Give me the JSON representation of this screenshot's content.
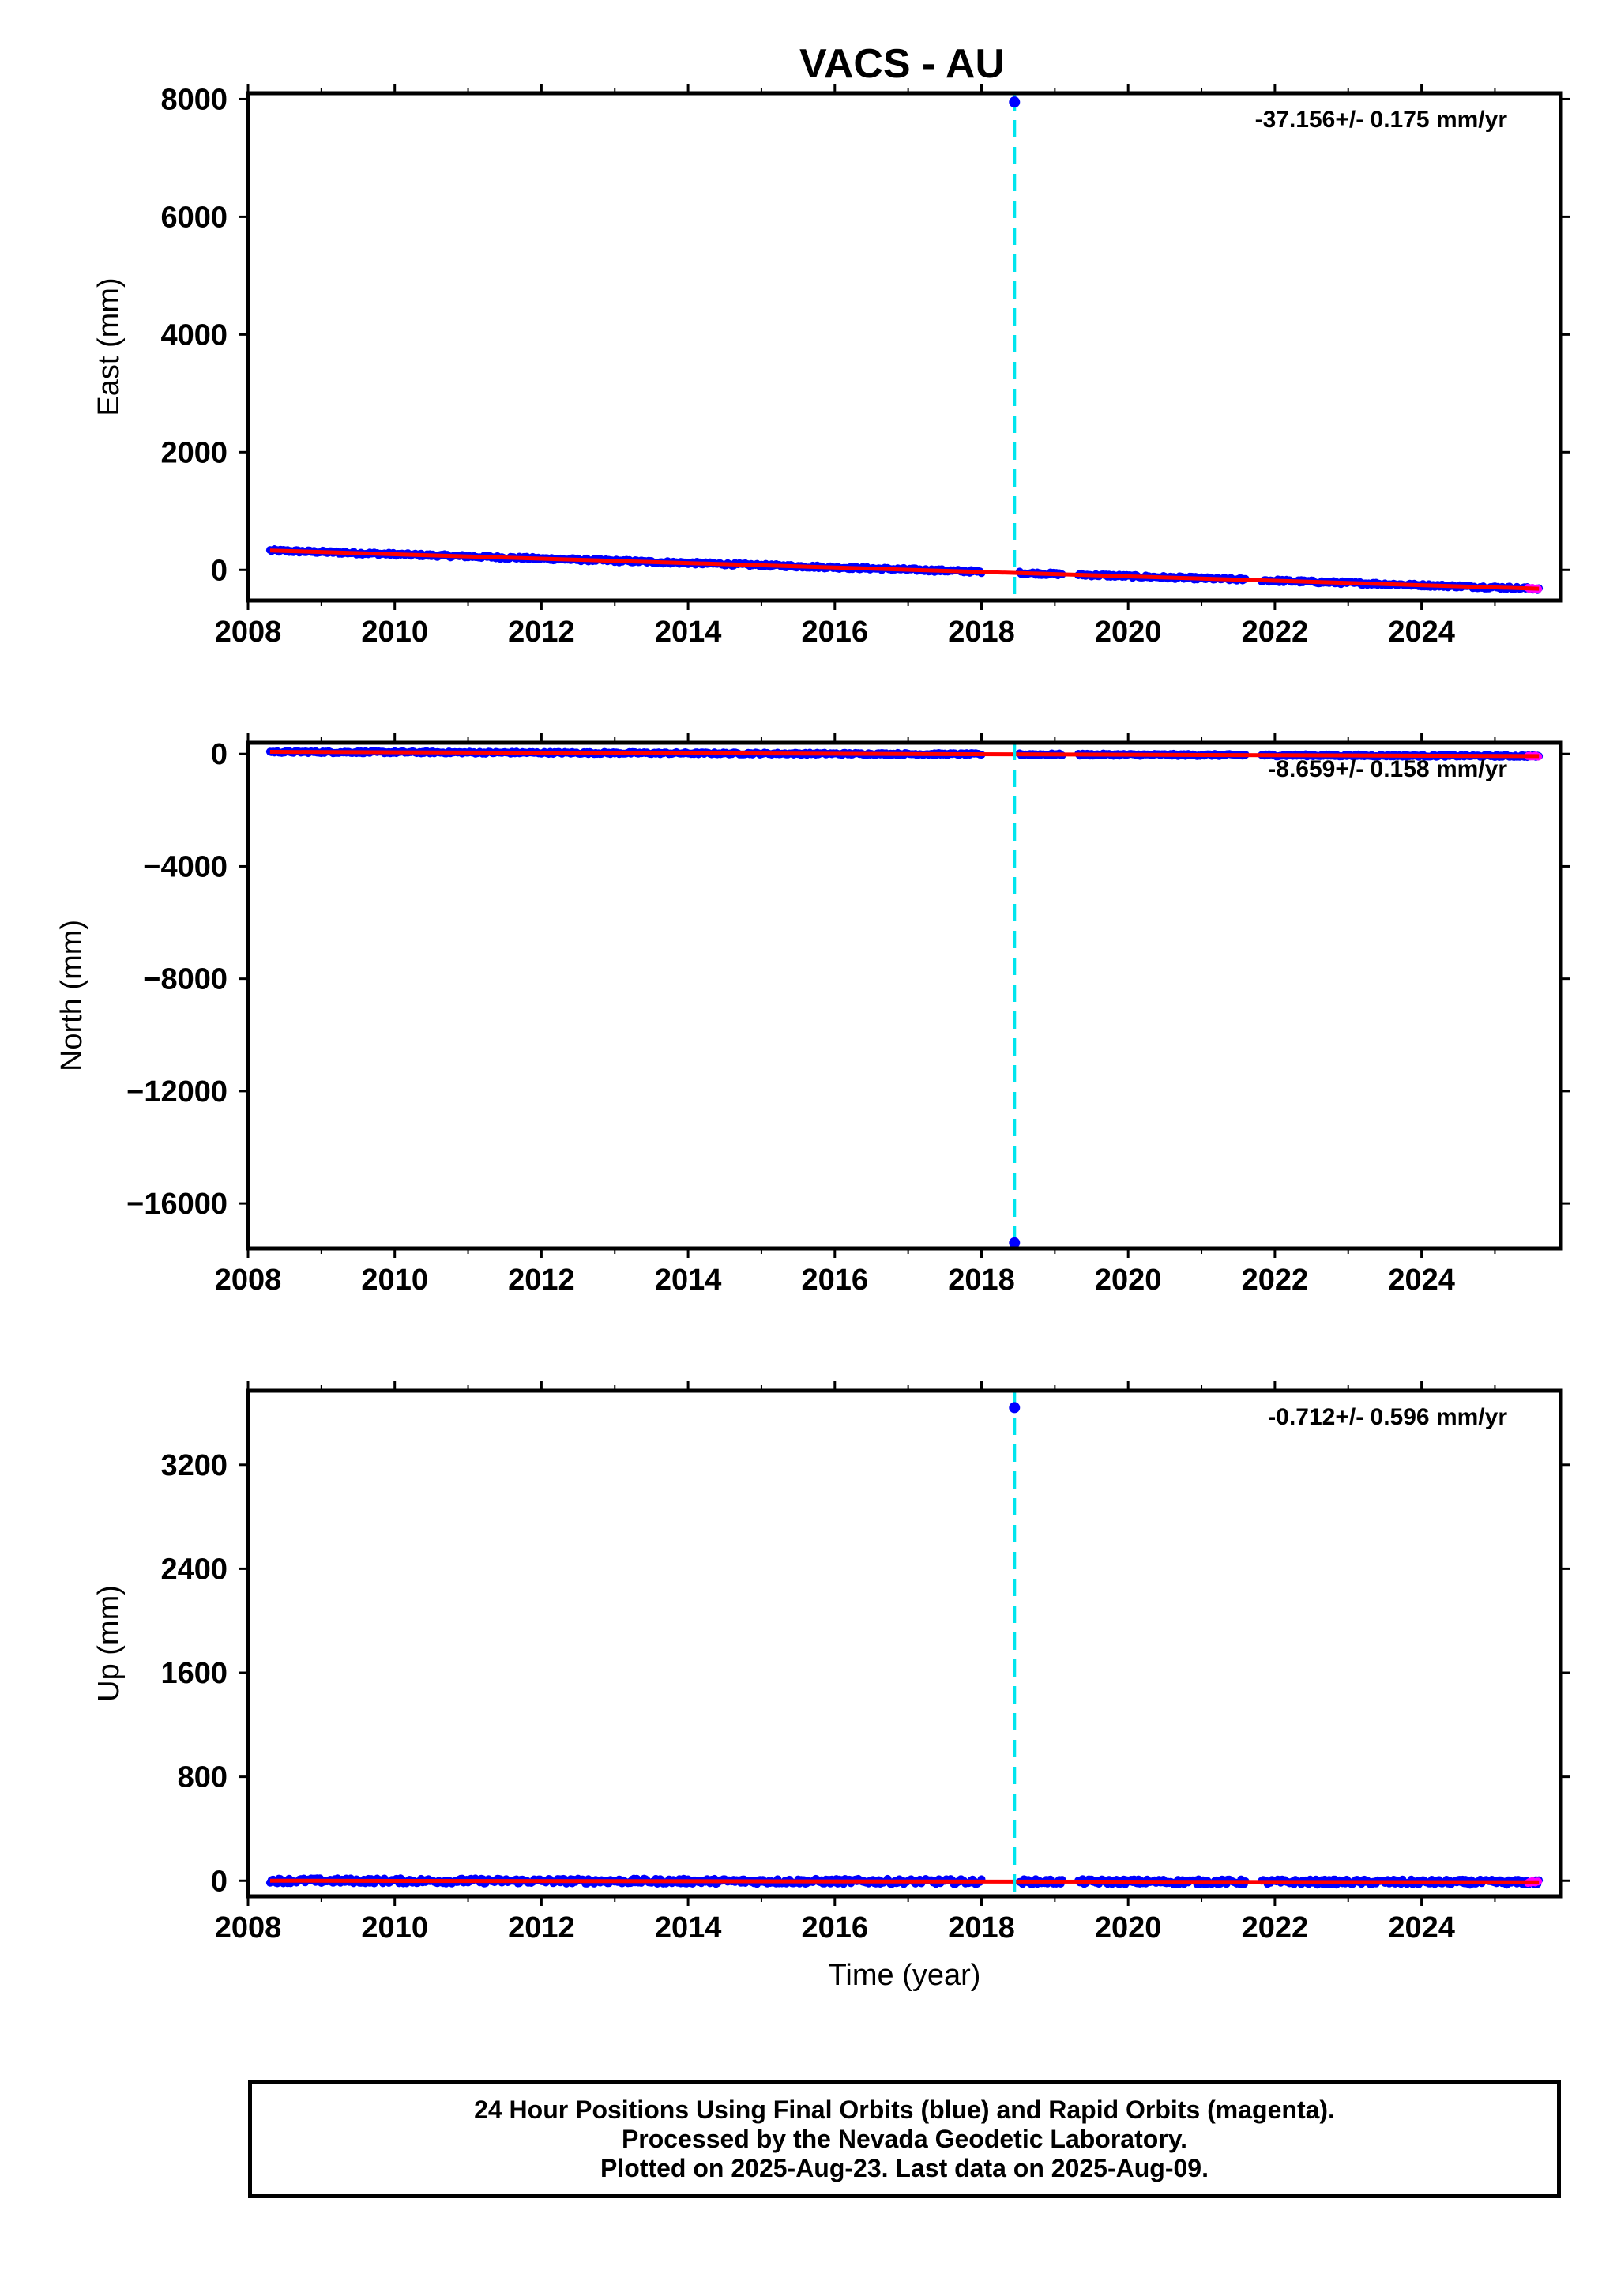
{
  "title": "VACS - AU",
  "colors": {
    "final_orbits": "#0000ff",
    "rapid_orbits": "#ff00ff",
    "model_fit": "#ff0000",
    "event_line": "#00e5ee",
    "frame": "#000000"
  },
  "event_marker": {
    "year": 2018.45,
    "style": "dashed vertical line"
  },
  "chart_data": [
    {
      "type": "scatter",
      "ylabel": "East (mm)",
      "xlabel": "",
      "xlim": [
        2008,
        2025.9
      ],
      "ylim": [
        -520,
        8100
      ],
      "x_ticks": [
        "2008",
        "2010",
        "2012",
        "2014",
        "2016",
        "2018",
        "2020",
        "2022",
        "2024"
      ],
      "y_ticks": [
        "0",
        "2000",
        "4000",
        "6000",
        "8000"
      ],
      "y_tick_values": [
        0,
        2000,
        4000,
        6000,
        8000
      ],
      "rate_label": "-37.156+/- 0.175 mm/yr",
      "series": [
        {
          "name": "Final Orbits",
          "x": [
            2008.3,
            2018.45,
            2025.6
          ],
          "y": [
            330,
            -48,
            -320
          ]
        },
        {
          "name": "Rapid Orbits",
          "x": [
            2025.45,
            2025.6
          ],
          "y": [
            -315,
            -320
          ]
        }
      ],
      "outliers": [
        {
          "x": 2018.45,
          "y": 7950
        }
      ],
      "gaps": [
        [
          2018.0,
          2018.5
        ],
        [
          2019.1,
          2019.3
        ],
        [
          2021.6,
          2021.8
        ]
      ],
      "trend": {
        "x": [
          2008.3,
          2025.6
        ],
        "y": [
          330,
          -320
        ]
      },
      "noise_mm": 25
    },
    {
      "type": "scatter",
      "ylabel": "North (mm)",
      "xlabel": "",
      "xlim": [
        2008,
        2025.9
      ],
      "ylim": [
        -17600,
        400
      ],
      "x_ticks": [
        "2008",
        "2010",
        "2012",
        "2014",
        "2016",
        "2018",
        "2020",
        "2022",
        "2024"
      ],
      "y_ticks": [
        "0",
        "−4000",
        "−8000",
        "−12000",
        "−16000"
      ],
      "y_tick_values": [
        0,
        -4000,
        -8000,
        -12000,
        -16000
      ],
      "rate_label": "-8.659+/- 0.158 mm/yr",
      "series": [
        {
          "name": "Final Orbits",
          "x": [
            2008.3,
            2025.6
          ],
          "y": [
            75,
            -75
          ]
        },
        {
          "name": "Rapid Orbits",
          "x": [
            2025.45,
            2025.6
          ],
          "y": [
            -73,
            -75
          ]
        }
      ],
      "outliers": [
        {
          "x": 2018.45,
          "y": -17400
        }
      ],
      "gaps": [
        [
          2018.0,
          2018.5
        ],
        [
          2019.1,
          2019.3
        ],
        [
          2021.6,
          2021.8
        ]
      ],
      "trend": {
        "x": [
          2008.3,
          2025.6
        ],
        "y": [
          75,
          -75
        ]
      },
      "noise_mm": 40
    },
    {
      "type": "scatter",
      "ylabel": "Up (mm)",
      "xlabel": "Time (year)",
      "xlim": [
        2008,
        2025.9
      ],
      "ylim": [
        -120,
        3770
      ],
      "x_ticks": [
        "2008",
        "2010",
        "2012",
        "2014",
        "2016",
        "2018",
        "2020",
        "2022",
        "2024"
      ],
      "y_ticks": [
        "0",
        "800",
        "1600",
        "2400",
        "3200"
      ],
      "y_tick_values": [
        0,
        800,
        1600,
        2400,
        3200
      ],
      "rate_label": "-0.712+/- 0.596 mm/yr",
      "series": [
        {
          "name": "Final Orbits",
          "x": [
            2008.3,
            2025.6
          ],
          "y": [
            0,
            -12
          ]
        },
        {
          "name": "Rapid Orbits",
          "x": [
            2025.45,
            2025.6
          ],
          "y": [
            -11,
            -12
          ]
        }
      ],
      "outliers": [
        {
          "x": 2018.45,
          "y": 3640
        }
      ],
      "gaps": [
        [
          2018.0,
          2018.5
        ],
        [
          2019.1,
          2019.3
        ],
        [
          2021.6,
          2021.8
        ]
      ],
      "trend": {
        "x": [
          2008.3,
          2025.6
        ],
        "y": [
          0,
          -12
        ]
      },
      "noise_mm": 20
    }
  ],
  "footer": {
    "line1": "24 Hour Positions Using Final Orbits (blue) and Rapid Orbits (magenta).",
    "line2": "Processed by the Nevada Geodetic Laboratory.",
    "line3": "Plotted on 2025-Aug-23. Last data on 2025-Aug-09."
  }
}
